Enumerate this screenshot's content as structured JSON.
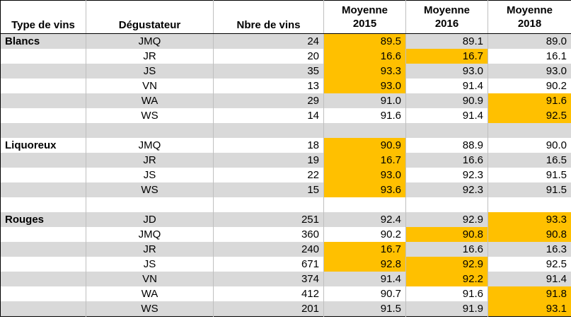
{
  "table": {
    "headers": {
      "type": "Type de vins",
      "taster": "Dégustateur",
      "count": "Nbre de vins",
      "y2015": [
        "Moyenne",
        "2015"
      ],
      "y2016": [
        "Moyenne",
        "2016"
      ],
      "y2018": [
        "Moyenne",
        "2018"
      ]
    },
    "highlight_color": "#ffc000",
    "shade_color": "#d9d9d9",
    "rows": [
      {
        "group": "Blancs",
        "taster": "JMQ",
        "count": "24",
        "y2015": "89.5",
        "y2016": "89.1",
        "y2018": "89.0",
        "highlight": [
          "y2015"
        ]
      },
      {
        "group": "",
        "taster": "JR",
        "count": "20",
        "y2015": "16.6",
        "y2016": "16.7",
        "y2018": "16.1",
        "highlight": [
          "y2015",
          "y2016"
        ]
      },
      {
        "group": "",
        "taster": "JS",
        "count": "35",
        "y2015": "93.3",
        "y2016": "93.0",
        "y2018": "93.0",
        "highlight": [
          "y2015"
        ]
      },
      {
        "group": "",
        "taster": "VN",
        "count": "13",
        "y2015": "93.0",
        "y2016": "91.4",
        "y2018": "90.2",
        "highlight": [
          "y2015"
        ]
      },
      {
        "group": "",
        "taster": "WA",
        "count": "29",
        "y2015": "91.0",
        "y2016": "90.9",
        "y2018": "91.6",
        "highlight": [
          "y2018"
        ]
      },
      {
        "group": "",
        "taster": "WS",
        "count": "14",
        "y2015": "91.6",
        "y2016": "91.4",
        "y2018": "92.5",
        "highlight": [
          "y2018"
        ]
      },
      {
        "blank": true
      },
      {
        "group": "Liquoreux",
        "taster": "JMQ",
        "count": "18",
        "y2015": "90.9",
        "y2016": "88.9",
        "y2018": "90.0",
        "highlight": [
          "y2015"
        ]
      },
      {
        "group": "",
        "taster": "JR",
        "count": "19",
        "y2015": "16.7",
        "y2016": "16.6",
        "y2018": "16.5",
        "highlight": [
          "y2015"
        ]
      },
      {
        "group": "",
        "taster": "JS",
        "count": "22",
        "y2015": "93.0",
        "y2016": "92.3",
        "y2018": "91.5",
        "highlight": [
          "y2015"
        ]
      },
      {
        "group": "",
        "taster": "WS",
        "count": "15",
        "y2015": "93.6",
        "y2016": "92.3",
        "y2018": "91.5",
        "highlight": [
          "y2015"
        ]
      },
      {
        "blank": true
      },
      {
        "group": "Rouges",
        "taster": "JD",
        "count": "251",
        "y2015": "92.4",
        "y2016": "92.9",
        "y2018": "93.3",
        "highlight": [
          "y2018"
        ]
      },
      {
        "group": "",
        "taster": "JMQ",
        "count": "360",
        "y2015": "90.2",
        "y2016": "90.8",
        "y2018": "90.8",
        "highlight": [
          "y2016",
          "y2018"
        ]
      },
      {
        "group": "",
        "taster": "JR",
        "count": "240",
        "y2015": "16.7",
        "y2016": "16.6",
        "y2018": "16.3",
        "highlight": [
          "y2015"
        ]
      },
      {
        "group": "",
        "taster": "JS",
        "count": "671",
        "y2015": "92.8",
        "y2016": "92.9",
        "y2018": "92.5",
        "highlight": [
          "y2015",
          "y2016"
        ]
      },
      {
        "group": "",
        "taster": "VN",
        "count": "374",
        "y2015": "91.4",
        "y2016": "92.2",
        "y2018": "91.4",
        "highlight": [
          "y2016"
        ]
      },
      {
        "group": "",
        "taster": "WA",
        "count": "412",
        "y2015": "90.7",
        "y2016": "91.6",
        "y2018": "91.8",
        "highlight": [
          "y2018"
        ]
      },
      {
        "group": "",
        "taster": "WS",
        "count": "201",
        "y2015": "91.5",
        "y2016": "91.9",
        "y2018": "93.1",
        "highlight": [
          "y2018"
        ]
      }
    ]
  }
}
